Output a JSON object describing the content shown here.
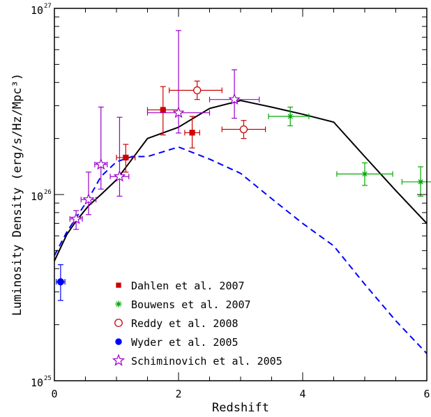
{
  "chart_data": {
    "type": "scatter",
    "xlabel": "Redshift",
    "ylabel": "Luminosity Density (erg/s/Hz/Mpc³)",
    "xlim": [
      0,
      6
    ],
    "ylim": [
      1e+25,
      1e+27
    ],
    "yscale": "log",
    "x_ticks": [
      {
        "value": 0,
        "label": "0"
      },
      {
        "value": 2,
        "label": "2"
      },
      {
        "value": 4,
        "label": "4"
      },
      {
        "value": 6,
        "label": "6"
      }
    ],
    "y_ticks": [
      {
        "value": 1e+25,
        "base": "10",
        "exp": "25"
      },
      {
        "value": 1e+26,
        "base": "10",
        "exp": "26"
      },
      {
        "value": 1e+27,
        "base": "10",
        "exp": "27"
      }
    ],
    "grid": false,
    "legend_position": "bottom-left",
    "series": [
      {
        "name": "Dahlen et al. 2007",
        "marker": "filled-square",
        "color": "#cc0000",
        "points": [
          {
            "x": 1.15,
            "y": 1.58e+26,
            "xerr": [
              0.15,
              0.15
            ],
            "yerr": [
              1.32e+26,
              1.86e+26
            ]
          },
          {
            "x": 1.75,
            "y": 2.85e+26,
            "xerr": [
              0.25,
              0.25
            ],
            "yerr": [
              2.09e+26,
              3.8e+26
            ]
          },
          {
            "x": 2.22,
            "y": 2.15e+26,
            "xerr": [
              0.12,
              0.12
            ],
            "yerr": [
              1.78e+26,
              2.63e+26
            ]
          }
        ]
      },
      {
        "name": "Bouwens et al. 2007",
        "marker": "asterisk",
        "color": "#00aa00",
        "points": [
          {
            "x": 3.8,
            "y": 2.63e+26,
            "xerr": [
              0.35,
              0.3
            ],
            "yerr": [
              2.34e+26,
              2.95e+26
            ]
          },
          {
            "x": 5.0,
            "y": 1.29e+26,
            "xerr": [
              0.45,
              0.45
            ],
            "yerr": [
              1.12e+26,
              1.48e+26
            ]
          },
          {
            "x": 5.9,
            "y": 1.17e+26,
            "xerr": [
              0.3,
              0.3
            ],
            "yerr": [
              9.8e+25,
              1.41e+26
            ]
          }
        ]
      },
      {
        "name": "Reddy et al. 2008",
        "marker": "open-circle",
        "color": "#cc0000",
        "points": [
          {
            "x": 2.3,
            "y": 3.63e+26,
            "xerr": [
              0.45,
              0.4
            ],
            "yerr": [
              3.24e+26,
              4.07e+26
            ]
          },
          {
            "x": 3.05,
            "y": 2.24e+26,
            "xerr": [
              0.35,
              0.35
            ],
            "yerr": [
              2e+26,
              2.5e+26
            ]
          }
        ]
      },
      {
        "name": "Wyder et al. 2005",
        "marker": "filled-circle",
        "color": "#0000ff",
        "points": [
          {
            "x": 0.1,
            "y": 3.4e+25,
            "xerr": [
              0.07,
              0.07
            ],
            "yerr": [
              2.7e+25,
              4.2e+25
            ]
          }
        ]
      },
      {
        "name": "Schiminovich et al. 2005",
        "marker": "open-star",
        "color": "#9900cc",
        "points": [
          {
            "x": 0.35,
            "y": 7.4e+25,
            "xerr": [
              0.1,
              0.1
            ],
            "yerr": [
              6.5e+25,
              8.2e+25
            ]
          },
          {
            "x": 0.55,
            "y": 9.4e+25,
            "xerr": [
              0.12,
              0.12
            ],
            "yerr": [
              7.8e+25,
              1.32e+26
            ]
          },
          {
            "x": 0.75,
            "y": 1.45e+26,
            "xerr": [
              0.1,
              0.1
            ],
            "yerr": [
              1.07e+26,
              2.95e+26
            ]
          },
          {
            "x": 1.05,
            "y": 1.25e+26,
            "xerr": [
              0.15,
              0.15
            ],
            "yerr": [
              9.8e+25,
              2.6e+26
            ]
          },
          {
            "x": 2.0,
            "y": 2.75e+26,
            "xerr": [
              0.5,
              0.5
            ],
            "yerr": [
              2.14e+26,
              7.6e+26
            ]
          },
          {
            "x": 2.9,
            "y": 3.24e+26,
            "xerr": [
              0.4,
              0.4
            ],
            "yerr": [
              2.57e+26,
              4.68e+26
            ]
          }
        ]
      }
    ],
    "lines": [
      {
        "style": "solid",
        "color": "#000000",
        "x": [
          0,
          0.2,
          0.35,
          0.55,
          0.75,
          1.0,
          1.25,
          1.5,
          2.0,
          2.5,
          3.0,
          3.5,
          4.0,
          4.5,
          5.0,
          5.5,
          6.0
        ],
        "y": [
          4.4e+25,
          6.1e+25,
          7.2e+25,
          8.7e+25,
          1e+26,
          1.2e+26,
          1.55e+26,
          2e+26,
          2.3e+26,
          2.9e+26,
          3.2e+26,
          2.95e+26,
          2.7e+26,
          2.45e+26,
          1.6e+26,
          1.05e+26,
          7e+25
        ]
      },
      {
        "style": "dashed",
        "color": "#0000ff",
        "x": [
          0,
          0.2,
          0.35,
          0.55,
          0.75,
          1.0,
          1.25,
          1.5,
          2.0,
          2.5,
          3.0,
          3.5,
          4.0,
          4.5,
          5.0,
          5.5,
          6.0
        ],
        "y": [
          4.7e+25,
          6.3e+25,
          7.5e+25,
          9.5e+25,
          1.25e+26,
          1.5e+26,
          1.6e+26,
          1.6e+26,
          1.8e+26,
          1.55e+26,
          1.3e+26,
          9.5e+25,
          7e+25,
          5.3e+25,
          3.3e+25,
          2.1e+25,
          1.4e+25
        ]
      }
    ]
  }
}
